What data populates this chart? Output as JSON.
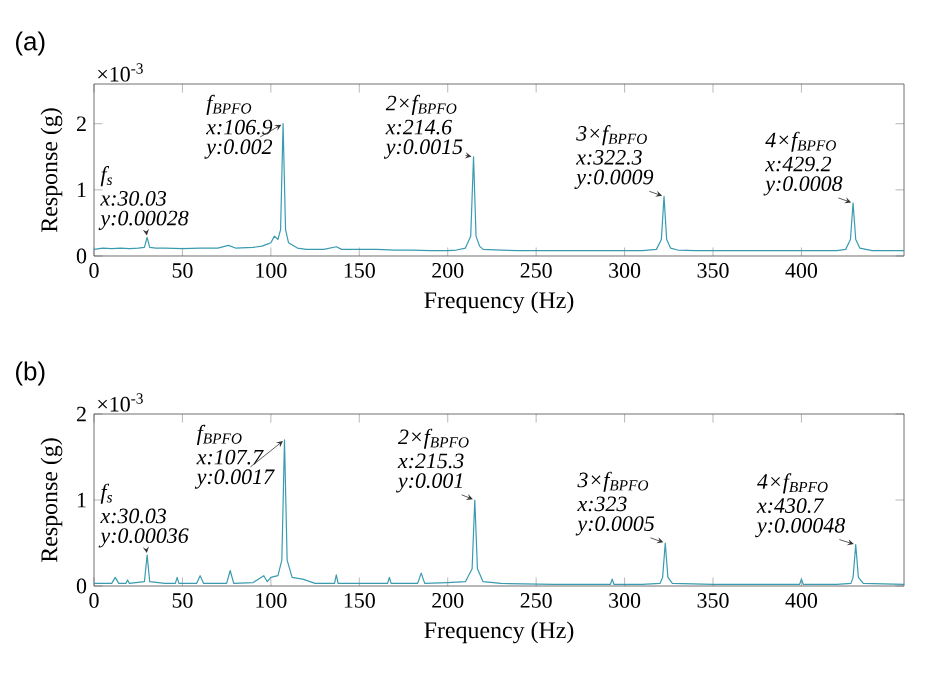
{
  "chart_data": [
    {
      "type": "line",
      "title": "(a)",
      "xlabel": "Frequency (Hz)",
      "ylabel": "Response (g)",
      "xlim": [
        0,
        458
      ],
      "ylim": [
        0,
        2.6
      ],
      "xticks": [
        0,
        50,
        100,
        150,
        200,
        250,
        300,
        350,
        400
      ],
      "yticks": [
        0,
        1,
        2
      ],
      "annotations": [
        "f$_{s}$",
        "x:30.03",
        {
          "text": "y:0.00028",
          "x": 30.03,
          "y": 0.28
        },
        "f$_{BPFO}$",
        "x:106.9",
        {
          "text": "y:0.002",
          "x": 106.9,
          "y": 2.0
        },
        "2×f$_{BPFO}$",
        "x:214.6",
        {
          "text": "y:0.0015",
          "x": 214.6,
          "y": 1.5
        },
        "3×f$_{BPFO}$",
        "x:322.3",
        {
          "text": "y:0.0009",
          "x": 322.3,
          "y": 0.9
        },
        "4×f$_{BPFO}$",
        "x:429.2",
        {
          "text": "y:0.0008",
          "x": 429.2,
          "y": 0.8
        },
        "×10$^{-3}$"
      ],
      "series": [
        {
          "color": "#3a9bb0",
          "x": [
            0,
            5,
            10,
            15,
            20,
            25,
            28.5,
            30.03,
            31.5,
            35,
            40,
            50,
            60,
            70,
            76,
            80,
            90,
            95,
            98,
            100,
            102,
            104,
            105.5,
            106.9,
            108.3,
            110,
            115,
            120,
            130,
            137,
            140,
            150,
            160,
            170,
            180,
            190,
            200,
            205,
            210,
            213,
            214.6,
            216,
            218,
            220,
            230,
            240,
            250,
            260,
            270,
            280,
            290,
            300,
            310,
            318,
            320.8,
            322.3,
            323.8,
            326,
            330,
            340,
            350,
            360,
            370,
            380,
            390,
            400,
            410,
            420,
            425,
            427.7,
            429.2,
            430.7,
            433,
            440,
            458
          ],
          "values": [
            0.1,
            0.12,
            0.11,
            0.12,
            0.11,
            0.12,
            0.13,
            0.28,
            0.13,
            0.12,
            0.12,
            0.11,
            0.12,
            0.12,
            0.16,
            0.12,
            0.13,
            0.15,
            0.18,
            0.2,
            0.3,
            0.25,
            0.4,
            2.0,
            0.4,
            0.2,
            0.12,
            0.1,
            0.1,
            0.14,
            0.1,
            0.1,
            0.1,
            0.09,
            0.09,
            0.08,
            0.08,
            0.09,
            0.12,
            0.3,
            1.5,
            0.3,
            0.15,
            0.1,
            0.09,
            0.08,
            0.08,
            0.08,
            0.08,
            0.08,
            0.08,
            0.08,
            0.08,
            0.1,
            0.25,
            0.9,
            0.25,
            0.12,
            0.09,
            0.08,
            0.08,
            0.08,
            0.08,
            0.08,
            0.08,
            0.08,
            0.08,
            0.08,
            0.1,
            0.25,
            0.8,
            0.25,
            0.12,
            0.08,
            0.08
          ]
        }
      ]
    },
    {
      "type": "line",
      "title": "(b)",
      "xlabel": "Frequency (Hz)",
      "ylabel": "Response (g)",
      "xlim": [
        0,
        458
      ],
      "ylim": [
        0,
        2
      ],
      "xticks": [
        0,
        50,
        100,
        150,
        200,
        250,
        300,
        350,
        400
      ],
      "yticks": [
        0,
        1,
        2
      ],
      "annotations": [
        "f$_{s}$",
        "x:30.03",
        {
          "text": "y:0.00036",
          "x": 30.03,
          "y": 0.36
        },
        "f$_{BPFO}$",
        "x:107.7",
        {
          "text": "y:0.0017",
          "x": 107.7,
          "y": 1.7
        },
        "2×f$_{BPFO}$",
        "x:215.3",
        {
          "text": "y:0.001",
          "x": 215.3,
          "y": 1.0
        },
        "3×f$_{BPFO}$",
        "x:323",
        {
          "text": "y:0.0005",
          "x": 323,
          "y": 0.5
        },
        "4×f$_{BPFO}$",
        "x:430.7",
        {
          "text": "y:0.00048",
          "x": 430.7,
          "y": 0.48
        },
        "×10$^{-3}$"
      ],
      "series": [
        {
          "color": "#3a9bb0",
          "x": [
            0,
            10,
            12,
            14,
            18,
            19,
            20,
            28.5,
            30.03,
            31.5,
            40,
            46,
            47,
            48,
            58,
            60,
            62,
            75,
            77,
            79,
            90,
            96,
            98,
            100,
            104,
            106.2,
            107.7,
            109.2,
            112,
            118,
            125,
            136,
            137,
            138,
            150,
            166,
            167,
            168,
            183,
            185,
            187,
            200,
            210,
            213.8,
            215.3,
            216.8,
            220,
            230,
            260,
            292,
            293,
            294,
            310,
            320,
            321.5,
            323,
            324.5,
            327,
            350,
            370,
            399,
            400,
            401,
            420,
            428,
            429.2,
            430.7,
            432.2,
            435,
            458
          ],
          "values": [
            0.03,
            0.03,
            0.1,
            0.03,
            0.03,
            0.07,
            0.03,
            0.05,
            0.36,
            0.05,
            0.03,
            0.03,
            0.1,
            0.03,
            0.03,
            0.12,
            0.03,
            0.03,
            0.18,
            0.03,
            0.04,
            0.12,
            0.05,
            0.1,
            0.12,
            0.3,
            1.7,
            0.3,
            0.1,
            0.08,
            0.03,
            0.03,
            0.13,
            0.03,
            0.03,
            0.03,
            0.1,
            0.03,
            0.03,
            0.15,
            0.03,
            0.04,
            0.05,
            0.2,
            1.0,
            0.2,
            0.05,
            0.03,
            0.02,
            0.02,
            0.08,
            0.02,
            0.02,
            0.03,
            0.1,
            0.5,
            0.1,
            0.03,
            0.02,
            0.02,
            0.02,
            0.08,
            0.02,
            0.02,
            0.03,
            0.1,
            0.48,
            0.1,
            0.03,
            0.02
          ]
        }
      ]
    }
  ]
}
